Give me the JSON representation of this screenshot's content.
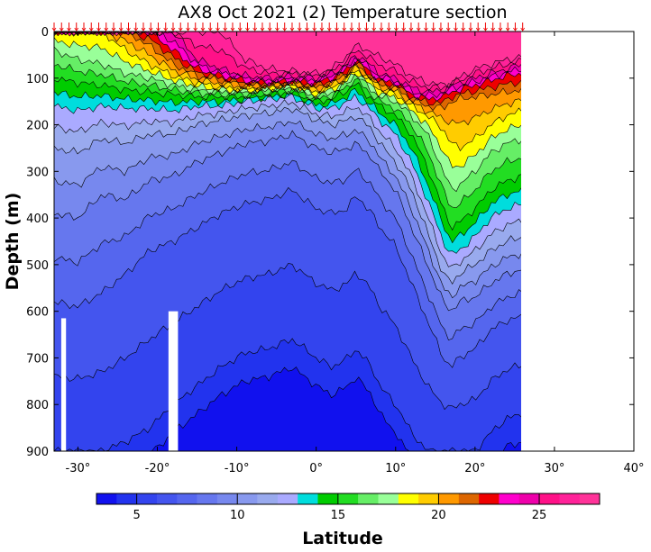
{
  "chart_data": {
    "type": "heatmap",
    "title": "AX8 Oct 2021 (2) Temperature section",
    "ylabel": "Depth (m)",
    "xlabel": "Latitude",
    "xlim": [
      -33,
      40
    ],
    "ylim": [
      900,
      0
    ],
    "data_extent_x": [
      -33,
      26
    ],
    "x_ticks": [
      -30,
      -20,
      -10,
      0,
      10,
      20,
      30,
      40
    ],
    "x_tick_labels": [
      "-30°",
      "-20°",
      "-10°",
      "0°",
      "10°",
      "20°",
      "30°",
      "40°"
    ],
    "y_ticks": [
      0,
      100,
      200,
      300,
      400,
      500,
      600,
      700,
      800,
      900
    ],
    "y_tick_labels": [
      "0",
      "100",
      "200",
      "300",
      "400",
      "500",
      "600",
      "700",
      "800",
      "900"
    ],
    "colorbar": {
      "min": 3,
      "max": 28,
      "step": 1,
      "ticks": [
        5,
        10,
        15,
        20,
        25
      ],
      "tick_labels": [
        "5",
        "10",
        "15",
        "20",
        "25"
      ],
      "colors": [
        "#1111ee",
        "#2233ee",
        "#3344ee",
        "#4455ee",
        "#5566ee",
        "#6677ee",
        "#7788ee",
        "#8899ee",
        "#99aaee",
        "#aaaaff",
        "#00dddd",
        "#00cc00",
        "#22dd22",
        "#66ee66",
        "#99ff99",
        "#ffff00",
        "#ffcc00",
        "#ff9900",
        "#dd6600",
        "#ee0000",
        "#ff00cc",
        "#ee00aa",
        "#ff1188",
        "#ff2299",
        "#ff3399"
      ]
    },
    "profile_count": 64,
    "isotherm_depths": {
      "latitudes": [
        -33,
        -30,
        -27,
        -24,
        -21,
        -18,
        -15,
        -12,
        -9,
        -6,
        -3,
        0,
        2,
        4,
        5,
        6,
        7,
        8,
        10,
        12,
        14,
        16,
        17,
        18,
        20,
        22,
        24,
        26
      ],
      "levels": [
        {
          "temp": 27,
          "depth": [
            0,
            0,
            0,
            0,
            0,
            0,
            0,
            0,
            60,
            80,
            85,
            90,
            80,
            50,
            30,
            35,
            45,
            55,
            70,
            95,
            110,
            115,
            110,
            100,
            80,
            70,
            60,
            55
          ]
        },
        {
          "temp": 25,
          "depth": [
            0,
            0,
            0,
            0,
            0,
            0,
            60,
            80,
            95,
            100,
            95,
            100,
            90,
            70,
            50,
            60,
            75,
            90,
            100,
            120,
            130,
            125,
            115,
            110,
            100,
            90,
            80,
            70
          ]
        },
        {
          "temp": 23,
          "depth": [
            0,
            0,
            0,
            0,
            0,
            40,
            80,
            95,
            105,
            110,
            105,
            110,
            100,
            80,
            60,
            75,
            90,
            105,
            110,
            135,
            145,
            140,
            130,
            125,
            115,
            105,
            95,
            90
          ]
        },
        {
          "temp": 21,
          "depth": [
            0,
            0,
            0,
            0,
            30,
            70,
            95,
            105,
            115,
            115,
            110,
            120,
            110,
            90,
            70,
            85,
            100,
            115,
            120,
            145,
            160,
            165,
            150,
            145,
            140,
            135,
            130,
            125
          ]
        },
        {
          "temp": 19,
          "depth": [
            0,
            0,
            0,
            40,
            70,
            95,
            110,
            120,
            125,
            120,
            115,
            130,
            120,
            100,
            80,
            95,
            110,
            125,
            135,
            160,
            180,
            210,
            240,
            250,
            230,
            200,
            180,
            170
          ]
        },
        {
          "temp": 17,
          "depth": [
            40,
            60,
            70,
            90,
            100,
            115,
            125,
            130,
            130,
            125,
            120,
            140,
            130,
            110,
            90,
            110,
            125,
            140,
            150,
            180,
            220,
            300,
            340,
            330,
            300,
            260,
            240,
            230
          ]
        },
        {
          "temp": 15,
          "depth": [
            100,
            110,
            115,
            125,
            130,
            135,
            140,
            140,
            140,
            135,
            130,
            150,
            145,
            125,
            110,
            130,
            145,
            160,
            180,
            220,
            290,
            380,
            420,
            410,
            380,
            340,
            320,
            310
          ]
        },
        {
          "temp": 13,
          "depth": [
            160,
            170,
            160,
            165,
            165,
            170,
            160,
            160,
            150,
            145,
            140,
            165,
            165,
            150,
            140,
            155,
            170,
            190,
            220,
            280,
            360,
            450,
            480,
            470,
            440,
            400,
            380,
            370
          ]
        },
        {
          "temp": 11,
          "depth": [
            250,
            260,
            230,
            240,
            220,
            220,
            200,
            190,
            180,
            175,
            165,
            190,
            200,
            190,
            180,
            195,
            210,
            240,
            280,
            340,
            430,
            520,
            540,
            520,
            500,
            470,
            450,
            440
          ]
        },
        {
          "temp": 9,
          "depth": [
            390,
            400,
            350,
            360,
            320,
            310,
            280,
            260,
            240,
            235,
            220,
            250,
            260,
            250,
            240,
            255,
            270,
            300,
            340,
            420,
            500,
            580,
            600,
            580,
            570,
            540,
            520,
            510
          ]
        },
        {
          "temp": 7,
          "depth": [
            580,
            590,
            560,
            520,
            470,
            450,
            420,
            390,
            370,
            360,
            340,
            380,
            390,
            380,
            350,
            370,
            390,
            420,
            460,
            540,
            620,
            700,
            720,
            700,
            680,
            640,
            620,
            610
          ]
        },
        {
          "temp": 5,
          "depth": [
            900,
            900,
            900,
            880,
            850,
            800,
            760,
            720,
            690,
            680,
            660,
            700,
            720,
            700,
            680,
            700,
            720,
            760,
            800,
            860,
            900,
            900,
            900,
            900,
            900,
            860,
            830,
            820
          ]
        }
      ]
    },
    "seafloor_gaps": [
      {
        "lat": [
          -32.1,
          -31.5
        ],
        "top_depth": 615
      },
      {
        "lat": [
          -18.6,
          -17.4
        ],
        "top_depth": 600
      }
    ]
  }
}
